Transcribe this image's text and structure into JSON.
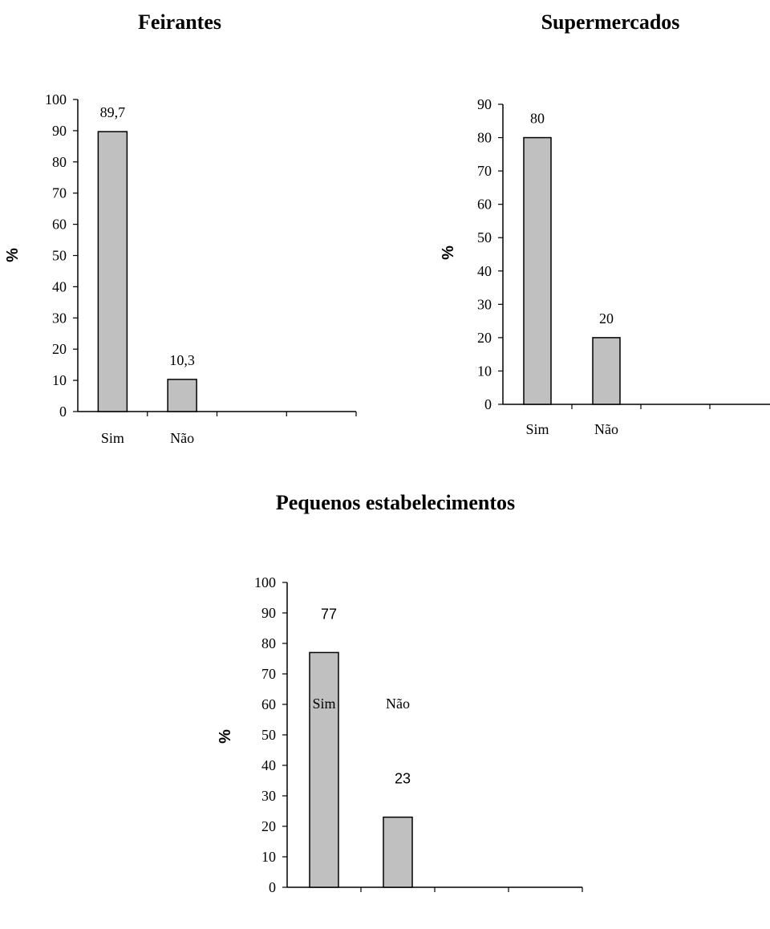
{
  "chart_data": [
    {
      "type": "bar",
      "title": "Feirantes",
      "ylabel": "%",
      "categories": [
        "Sim",
        "Não"
      ],
      "values": [
        89.7,
        10.3
      ],
      "data_labels": [
        "89,7",
        "10,3"
      ],
      "yticks": [
        0,
        10,
        20,
        30,
        40,
        50,
        60,
        70,
        80,
        90,
        100
      ],
      "ylim": [
        0,
        100
      ],
      "bar_color": "#c0c0c0",
      "grid": false,
      "legend": "none"
    },
    {
      "type": "bar",
      "title": "Supermercados",
      "ylabel": "%",
      "categories": [
        "Sim",
        "Não"
      ],
      "values": [
        80,
        20
      ],
      "data_labels": [
        "80",
        "20"
      ],
      "yticks": [
        0,
        10,
        20,
        30,
        40,
        50,
        60,
        70,
        80,
        90
      ],
      "ylim": [
        0,
        90
      ],
      "bar_color": "#c0c0c0",
      "grid": false,
      "legend": "none"
    },
    {
      "type": "bar",
      "title": "Pequenos estabelecimentos",
      "ylabel": "%",
      "categories": [
        "Sim",
        "Não"
      ],
      "values": [
        77,
        23
      ],
      "data_labels": [
        "77",
        "23"
      ],
      "yticks": [
        0,
        10,
        20,
        30,
        40,
        50,
        60,
        70,
        80,
        90,
        100
      ],
      "ylim": [
        0,
        100
      ],
      "bar_color": "#c0c0c0",
      "grid": false,
      "legend": "none"
    }
  ]
}
